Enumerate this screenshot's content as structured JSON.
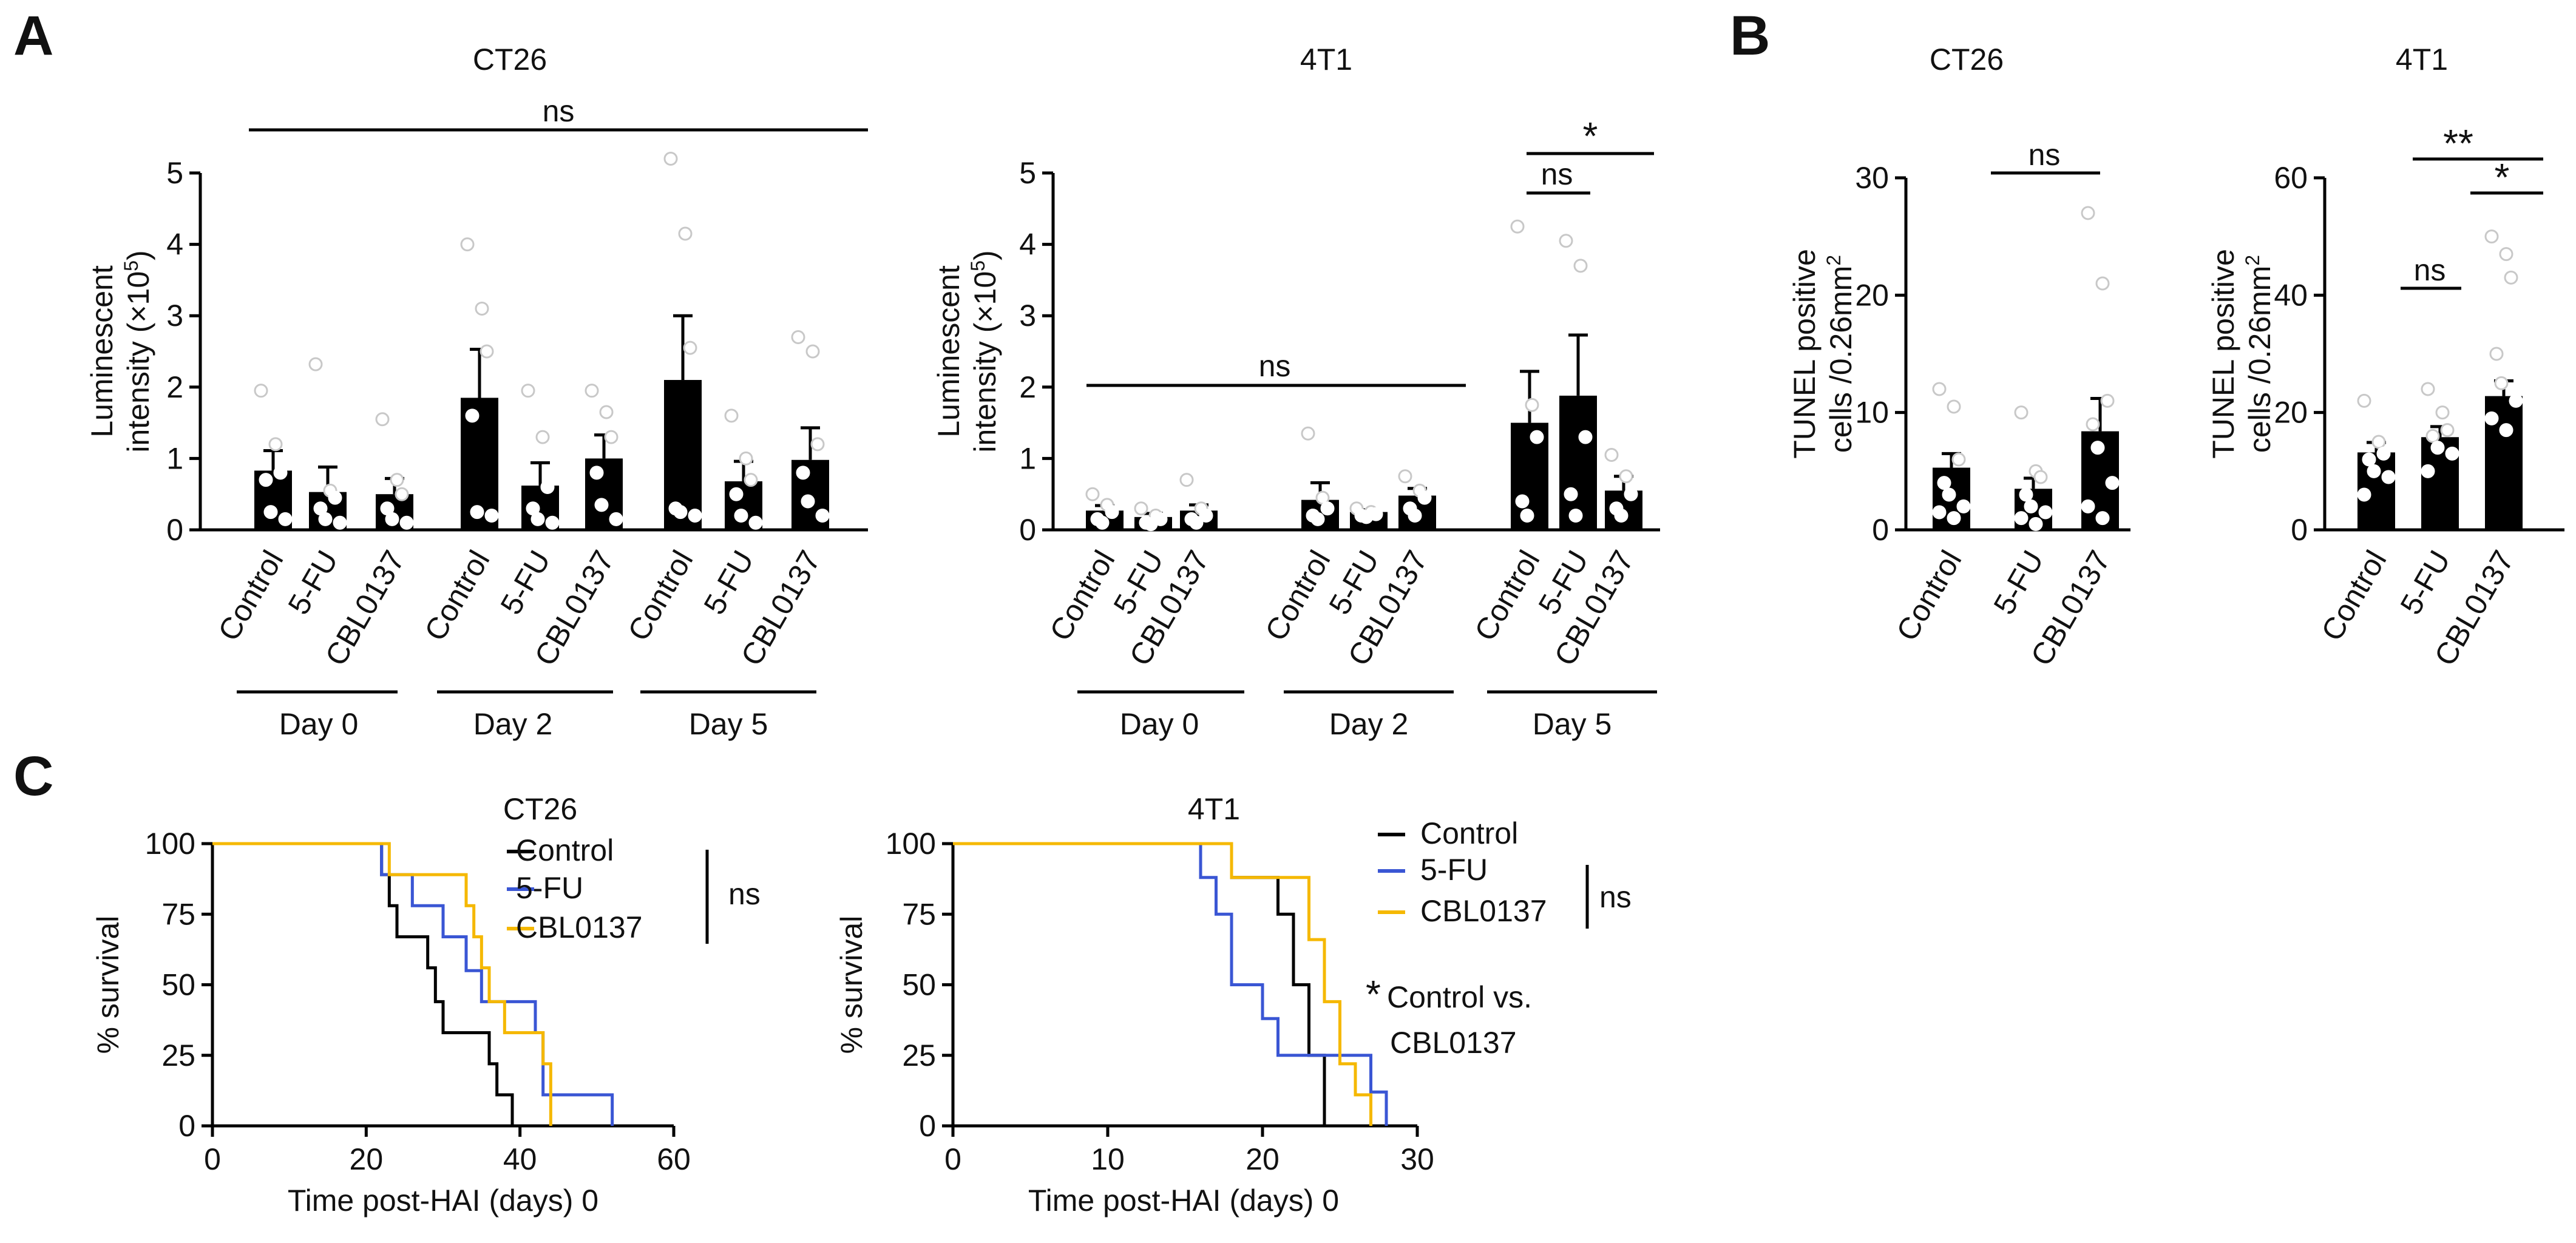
{
  "figure": {
    "panel_labels": [
      "A",
      "B",
      "C"
    ],
    "significance": {
      "a_ct26_overall": "ns",
      "a_4t1_day0_day2": "ns",
      "a_4t1_day5_control_5fu": "ns",
      "a_4t1_day5_control_cbl": "*",
      "b_ct26_control_cbl": "ns",
      "b_4t1_control_5fu": "ns",
      "b_4t1_5fu_cbl": "*",
      "b_4t1_control_cbl": "**",
      "c_ct26": "ns",
      "c_4t1": "ns",
      "c_4t1_star": "*",
      "c_4t1_note_line1": "Control vs.",
      "c_4t1_note_line2": "CBL0137"
    }
  },
  "chart_data": [
    {
      "id": "A_CT26",
      "type": "bar",
      "title": "CT26",
      "ylabel_line1": "Luminescent",
      "ylabel_line2": "intensity (×10",
      "ylabel_sup": "5",
      "ylabel_close": ")",
      "ylim": [
        0,
        5
      ],
      "yticks": [
        "0",
        "1",
        "2",
        "3",
        "4",
        "5"
      ],
      "groups": [
        "Day 0",
        "Day 2",
        "Day 5"
      ],
      "categories": [
        "Control",
        "5-FU",
        "CBL0137",
        "Control",
        "5-FU",
        "CBL0137",
        "Control",
        "5-FU",
        "CBL0137"
      ],
      "values": [
        0.83,
        0.53,
        0.5,
        1.85,
        0.62,
        1.0,
        2.1,
        0.68,
        0.98
      ],
      "errors": [
        0.28,
        0.35,
        0.22,
        0.68,
        0.32,
        0.33,
        0.9,
        0.28,
        0.45
      ],
      "points": [
        [
          1.95,
          1.2,
          0.8,
          0.7,
          0.25,
          0.15
        ],
        [
          2.32,
          0.55,
          0.45,
          0.3,
          0.15,
          0.1
        ],
        [
          1.55,
          0.7,
          0.5,
          0.3,
          0.15,
          0.1
        ],
        [
          4.0,
          3.1,
          2.5,
          1.6,
          0.25,
          0.2
        ],
        [
          1.95,
          1.3,
          0.6,
          0.3,
          0.15,
          0.1
        ],
        [
          1.95,
          1.65,
          1.3,
          0.8,
          0.35,
          0.15
        ],
        [
          5.2,
          4.15,
          2.55,
          0.3,
          0.25,
          0.2
        ],
        [
          1.6,
          1.0,
          0.7,
          0.5,
          0.2,
          0.1
        ],
        [
          2.7,
          2.5,
          1.2,
          0.8,
          0.4,
          0.2
        ]
      ]
    },
    {
      "id": "A_4T1",
      "type": "bar",
      "title": "4T1",
      "ylabel_line1": "Luminescent",
      "ylabel_line2": "intensity (×10",
      "ylabel_sup": "5",
      "ylabel_close": ")",
      "ylim": [
        0,
        5
      ],
      "yticks": [
        "0",
        "1",
        "2",
        "3",
        "4",
        "5"
      ],
      "groups": [
        "Day 0",
        "Day 2",
        "Day 5"
      ],
      "categories": [
        "Control",
        "5-FU",
        "CBL0137",
        "Control",
        "5-FU",
        "CBL0137",
        "Control",
        "5-FU",
        "CBL0137"
      ],
      "values": [
        0.27,
        0.18,
        0.27,
        0.42,
        0.25,
        0.48,
        1.5,
        1.88,
        0.55
      ],
      "errors": [
        0.07,
        0.05,
        0.08,
        0.24,
        0.03,
        0.1,
        0.72,
        0.85,
        0.2
      ],
      "points": [
        [
          0.5,
          0.35,
          0.25,
          0.15,
          0.1
        ],
        [
          0.3,
          0.2,
          0.15,
          0.1,
          0.08
        ],
        [
          0.7,
          0.3,
          0.2,
          0.15,
          0.1
        ],
        [
          1.35,
          0.45,
          0.3,
          0.2,
          0.15
        ],
        [
          0.3,
          0.25,
          0.22,
          0.2,
          0.18
        ],
        [
          0.75,
          0.55,
          0.45,
          0.3,
          0.2
        ],
        [
          4.25,
          1.75,
          1.3,
          0.4,
          0.2
        ],
        [
          4.05,
          3.7,
          1.3,
          0.5,
          0.2
        ],
        [
          1.05,
          0.75,
          0.5,
          0.3,
          0.2
        ]
      ]
    },
    {
      "id": "B_CT26",
      "type": "bar",
      "title": "CT26",
      "ylabel_line1": "TUNEL positive",
      "ylabel_line2": "cells /0.26mm",
      "ylabel_sup": "2",
      "ylabel_close": "",
      "ylim": [
        0,
        30
      ],
      "yticks": [
        "0",
        "10",
        "20",
        "30"
      ],
      "categories": [
        "Control",
        "5-FU",
        "CBL0137"
      ],
      "values": [
        5.3,
        3.5,
        8.4
      ],
      "errors": [
        1.2,
        0.9,
        2.8
      ],
      "points": [
        [
          12.0,
          10.5,
          6.0,
          4.0,
          3.0,
          2.0,
          1.5,
          1.0
        ],
        [
          10.0,
          5.0,
          4.5,
          3.0,
          2.0,
          1.5,
          1.0,
          0.5
        ],
        [
          27.0,
          21.0,
          11.0,
          9.0,
          7.0,
          4.0,
          2.0,
          1.0
        ]
      ]
    },
    {
      "id": "B_4T1",
      "type": "bar",
      "title": "4T1",
      "ylabel_line1": "TUNEL positive",
      "ylabel_line2": "cells /0.26mm",
      "ylabel_sup": "2",
      "ylabel_close": "",
      "ylim": [
        0,
        60
      ],
      "yticks": [
        "0",
        "20",
        "40",
        "60"
      ],
      "categories": [
        "Control",
        "5-FU",
        "CBL0137"
      ],
      "values": [
        13.2,
        15.8,
        22.8
      ],
      "errors": [
        1.7,
        1.8,
        2.6
      ],
      "points": [
        [
          22.0,
          15.0,
          13.0,
          12.0,
          10.0,
          9.0,
          6.0
        ],
        [
          24.0,
          20.0,
          17.0,
          16.0,
          14.0,
          13.0,
          10.0
        ],
        [
          50.0,
          47.0,
          43.0,
          30.0,
          25.0,
          22.0,
          19.0,
          17.0
        ]
      ]
    },
    {
      "id": "C_CT26",
      "type": "line",
      "title": "CT26",
      "xlabel": "Time post-HAI (days) 0",
      "ylabel": "% survival",
      "xlim": [
        0,
        60
      ],
      "ylim": [
        0,
        100
      ],
      "xticks": [
        "0",
        "20",
        "40",
        "60"
      ],
      "yticks": [
        "0",
        "25",
        "50",
        "75",
        "100"
      ],
      "series": [
        {
          "name": "Control",
          "color": "#000000",
          "x": [
            0,
            21,
            22,
            23,
            24,
            28,
            29,
            30,
            35,
            36,
            37,
            39,
            39
          ],
          "y": [
            100,
            100,
            89,
            78,
            67,
            56,
            44,
            33,
            33,
            22,
            11,
            11,
            0
          ]
        },
        {
          "name": "5-FU",
          "color": "#3A56D4",
          "x": [
            0,
            22,
            22,
            24,
            26,
            30,
            33,
            35,
            42,
            43,
            52,
            52
          ],
          "y": [
            100,
            100,
            89,
            89,
            78,
            67,
            55,
            44,
            33,
            11,
            11,
            0
          ]
        },
        {
          "name": "CBL0137",
          "color": "#F5B800",
          "x": [
            0,
            22,
            23,
            23,
            31,
            33,
            34,
            35,
            36,
            38,
            43,
            44,
            44
          ],
          "y": [
            100,
            100,
            100,
            89,
            89,
            78,
            67,
            56,
            44,
            33,
            22,
            22,
            0
          ]
        }
      ]
    },
    {
      "id": "C_4T1",
      "type": "line",
      "title": "4T1",
      "xlabel": "Time post-HAI (days) 0",
      "ylabel": "% survival",
      "xlim": [
        0,
        30
      ],
      "ylim": [
        0,
        100
      ],
      "xticks": [
        "0",
        "10",
        "20",
        "30"
      ],
      "yticks": [
        "0",
        "25",
        "50",
        "75",
        "100"
      ],
      "series": [
        {
          "name": "Control",
          "color": "#000000",
          "x": [
            0,
            17,
            17,
            18,
            20,
            21,
            22,
            23,
            24,
            24
          ],
          "y": [
            100,
            100,
            100,
            88,
            88,
            75,
            50,
            25,
            12,
            0
          ]
        },
        {
          "name": "5-FU",
          "color": "#3A56D4",
          "x": [
            0,
            15,
            16,
            17,
            18,
            20,
            21,
            27,
            28,
            28
          ],
          "y": [
            100,
            100,
            88,
            75,
            50,
            38,
            25,
            12,
            12,
            0
          ]
        },
        {
          "name": "CBL0137",
          "color": "#F5B800",
          "x": [
            0,
            18,
            18,
            20,
            23,
            24,
            25,
            26,
            27,
            27
          ],
          "y": [
            100,
            100,
            88,
            88,
            66,
            44,
            22,
            11,
            11,
            0
          ]
        }
      ]
    }
  ]
}
